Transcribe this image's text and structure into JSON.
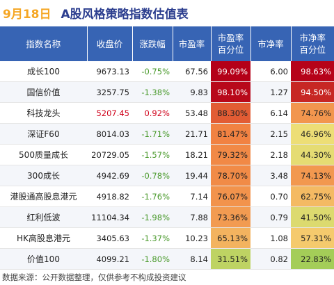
{
  "title": {
    "date": "9月18日",
    "text": "A股风格策略指数估值表"
  },
  "columns": [
    "指数名称",
    "收盘价",
    "涨跌幅",
    "市盈率",
    "市盈率\n百分位",
    "市净率",
    "市净率\n百分位"
  ],
  "rows": [
    {
      "name": "成长100",
      "close": "9673.13",
      "change": "-0.75%",
      "pe": "67.56",
      "pe_pct": "99.09%",
      "pb": "6.00",
      "pb_pct": "98.63%"
    },
    {
      "name": "国信价值",
      "close": "3257.75",
      "change": "-1.38%",
      "pe": "9.83",
      "pe_pct": "98.10%",
      "pb": "1.27",
      "pb_pct": "94.50%"
    },
    {
      "name": "科技龙头",
      "close": "5207.45",
      "change": "0.92%",
      "pe": "53.48",
      "pe_pct": "88.30%",
      "pb": "6.14",
      "pb_pct": "74.76%"
    },
    {
      "name": "深证F60",
      "close": "8014.03",
      "change": "-1.71%",
      "pe": "21.71",
      "pe_pct": "81.47%",
      "pb": "2.15",
      "pb_pct": "46.96%"
    },
    {
      "name": "500质量成长",
      "close": "20729.05",
      "change": "-1.57%",
      "pe": "18.21",
      "pe_pct": "79.32%",
      "pb": "2.18",
      "pb_pct": "44.30%"
    },
    {
      "name": "300成长",
      "close": "4942.69",
      "change": "-0.78%",
      "pe": "19.44",
      "pe_pct": "78.70%",
      "pb": "3.48",
      "pb_pct": "74.13%"
    },
    {
      "name": "港股通高股息港元",
      "close": "4918.82",
      "change": "-1.76%",
      "pe": "7.14",
      "pe_pct": "76.07%",
      "pb": "0.70",
      "pb_pct": "62.75%"
    },
    {
      "name": "红利低波",
      "close": "11104.34",
      "change": "-1.98%",
      "pe": "7.88",
      "pe_pct": "73.36%",
      "pb": "0.79",
      "pb_pct": "41.50%"
    },
    {
      "name": "HK高股息港元",
      "close": "3405.63",
      "change": "-1.37%",
      "pe": "10.23",
      "pe_pct": "65.13%",
      "pb": "1.08",
      "pb_pct": "57.31%"
    },
    {
      "name": "价值100",
      "close": "4099.21",
      "change": "-1.80%",
      "pe": "8.14",
      "pe_pct": "31.51%",
      "pb": "0.82",
      "pb_pct": "22.83%"
    }
  ],
  "colors": {
    "header_bg": "#3764b4",
    "positive": "#d0021b",
    "negative": "#4a9a2c",
    "heat_high": "#b40018",
    "heat_mid": "#f6e07a",
    "heat_low": "#5fbd3c"
  },
  "footer": "数据来源：公开数据整理，仅供参考不构成投资建议"
}
